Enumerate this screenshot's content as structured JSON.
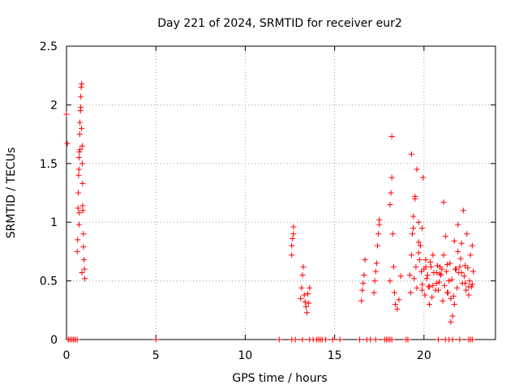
{
  "chart_data": {
    "type": "scatter",
    "title": "Day 221 of 2024, SRMTID for receiver eur2",
    "xlabel": "GPS time / hours",
    "ylabel": "SRMTID / TECUs",
    "xlim": [
      0,
      24
    ],
    "ylim": [
      0,
      2.5
    ],
    "x_ticks": [
      0,
      5,
      10,
      15,
      20
    ],
    "y_ticks": [
      0,
      0.5,
      1,
      1.5,
      2,
      2.5
    ],
    "x_tick_labels": [
      "0",
      "5",
      "10",
      "15",
      "20"
    ],
    "y_tick_labels": [
      "0",
      "0.5",
      "1",
      "1.5",
      "2",
      "2.5"
    ],
    "grid": true,
    "marker": "+",
    "color": "#ff0000",
    "series": [
      {
        "name": "SRMTID",
        "x": [
          0.0,
          0.05,
          0.1,
          0.2,
          0.3,
          0.4,
          0.5,
          0.6,
          0.6,
          0.62,
          0.65,
          0.66,
          0.7,
          0.72,
          0.75,
          0.78,
          0.8,
          0.82,
          0.85,
          0.88,
          0.9,
          0.92,
          0.95,
          0.98,
          1.0,
          1.02,
          0.68,
          0.7,
          0.74,
          0.76,
          0.8,
          0.84,
          0.88,
          0.9,
          0.95,
          0.7,
          0.72,
          0.86,
          12.6,
          12.6,
          12.65,
          12.7,
          12.7,
          13.1,
          13.15,
          13.2,
          13.25,
          13.3,
          13.35,
          13.4,
          13.45,
          13.5,
          13.55,
          13.6,
          16.5,
          16.55,
          16.6,
          16.65,
          16.7,
          17.2,
          17.25,
          17.3,
          17.35,
          17.4,
          17.45,
          17.5,
          17.5,
          18.1,
          18.1,
          18.15,
          18.2,
          18.2,
          18.25,
          18.3,
          18.35,
          18.4,
          18.5,
          18.6,
          18.7,
          19.3,
          19.35,
          19.4,
          19.5,
          19.6,
          19.7,
          19.8,
          19.9,
          19.95,
          20.1,
          20.2,
          20.3,
          20.4,
          20.5,
          20.7,
          20.8,
          20.9,
          21.0,
          21.1,
          21.2,
          21.3,
          21.4,
          21.5,
          21.6,
          21.7,
          21.8,
          21.9,
          22.0,
          22.1,
          22.2,
          22.3,
          22.4,
          22.5,
          22.6,
          22.7,
          19.2,
          19.25,
          19.4,
          19.45,
          19.55,
          19.6,
          19.7,
          19.75,
          19.85,
          19.9,
          20.0,
          20.05,
          20.15,
          20.25,
          20.35,
          20.45,
          20.55,
          20.65,
          20.75,
          20.85,
          20.95,
          21.05,
          21.15,
          21.25,
          21.35,
          21.45,
          21.55,
          21.65,
          21.75,
          21.85,
          21.95,
          22.05,
          22.15,
          22.25,
          22.35,
          22.45,
          22.55,
          22.65,
          22.75,
          19.3,
          19.5,
          19.7,
          19.9,
          20.1,
          20.3,
          20.5,
          20.7,
          20.9,
          21.1,
          21.3,
          21.5,
          21.7,
          21.9,
          22.1,
          22.3,
          22.5,
          22.7,
          0.1,
          0.2,
          0.3,
          0.4,
          0.5,
          5.0,
          11.9,
          12.6,
          12.8,
          13.2,
          13.6,
          13.8,
          14.0,
          14.1,
          14.2,
          14.3,
          14.5,
          14.9,
          15.3,
          16.4,
          16.8,
          17.0,
          17.3,
          17.8,
          17.9,
          18.0,
          18.1,
          18.2,
          19.0,
          19.1,
          20.8,
          21.2,
          21.4,
          21.6,
          22.0,
          22.5,
          22.6,
          22.7
        ],
        "y": [
          1.92,
          1.67,
          0.0,
          0.0,
          0.0,
          0.0,
          0.0,
          0.0,
          0.75,
          0.85,
          1.12,
          1.25,
          1.45,
          1.6,
          1.85,
          1.95,
          2.07,
          2.15,
          2.18,
          1.5,
          1.33,
          1.1,
          0.9,
          0.68,
          0.6,
          0.52,
          1.4,
          1.55,
          1.75,
          1.62,
          1.98,
          1.8,
          1.65,
          1.14,
          0.79,
          0.98,
          1.08,
          0.57,
          0.72,
          0.8,
          0.86,
          0.9,
          0.96,
          0.35,
          0.44,
          0.55,
          0.62,
          0.38,
          0.32,
          0.28,
          0.23,
          0.39,
          0.31,
          0.44,
          0.33,
          0.42,
          0.48,
          0.55,
          0.68,
          0.4,
          0.5,
          0.58,
          0.65,
          0.8,
          0.9,
          0.98,
          1.02,
          0.5,
          1.15,
          1.25,
          1.38,
          1.73,
          0.9,
          0.62,
          0.4,
          0.3,
          0.26,
          0.34,
          0.54,
          0.72,
          0.9,
          1.05,
          1.2,
          1.45,
          1.0,
          0.8,
          0.95,
          1.38,
          0.62,
          0.55,
          0.45,
          0.62,
          0.72,
          0.48,
          0.42,
          0.56,
          0.6,
          1.17,
          0.88,
          0.64,
          0.5,
          0.35,
          0.2,
          0.3,
          0.6,
          0.75,
          0.62,
          0.82,
          1.1,
          0.48,
          0.9,
          0.45,
          0.72,
          0.8,
          0.55,
          0.4,
          0.95,
          0.52,
          0.62,
          0.44,
          0.74,
          0.68,
          0.58,
          0.47,
          0.6,
          0.38,
          0.52,
          0.45,
          0.66,
          0.36,
          0.57,
          0.42,
          0.63,
          0.49,
          0.55,
          0.33,
          0.46,
          0.58,
          0.4,
          0.65,
          0.51,
          0.37,
          0.6,
          0.44,
          0.57,
          0.69,
          0.48,
          0.54,
          0.42,
          0.61,
          0.5,
          0.45,
          0.58,
          1.58,
          1.22,
          0.83,
          0.42,
          0.68,
          0.3,
          0.46,
          0.57,
          0.62,
          0.72,
          0.4,
          0.15,
          0.84,
          0.98,
          0.57,
          0.63,
          0.38,
          0.47,
          0,
          0,
          0,
          0,
          0,
          0,
          0,
          0,
          0,
          0,
          0,
          0,
          0,
          0,
          0,
          0,
          0,
          0,
          0,
          0,
          0,
          0,
          0,
          0,
          0,
          0,
          0,
          0,
          0,
          0,
          0,
          0,
          0,
          0,
          0,
          0,
          0,
          0
        ]
      }
    ]
  }
}
